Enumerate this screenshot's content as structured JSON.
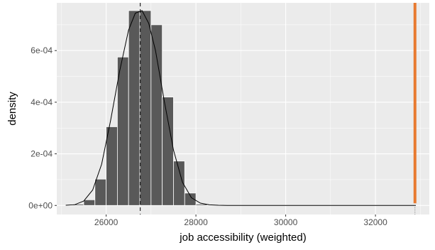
{
  "chart_data": {
    "type": "bar",
    "subtype": "histogram-with-density",
    "xlabel": "job accessibility (weighted)",
    "ylabel": "density",
    "xlim": [
      24900,
      33200
    ],
    "ylim": [
      -3.5e-05,
      0.000785
    ],
    "x_ticks": [
      26000,
      28000,
      30000,
      32000
    ],
    "x_tick_labels": [
      "26000",
      "28000",
      "30000",
      "32000"
    ],
    "y_ticks": [
      0,
      0.0002,
      0.0004,
      0.0006
    ],
    "y_tick_labels": [
      "0e+00",
      "2e-04",
      "4e-04",
      "6e-04"
    ],
    "grid": true,
    "bin_width": 250,
    "bins": [
      {
        "x0": 25250,
        "x1": 25500,
        "density": 5e-06
      },
      {
        "x0": 25500,
        "x1": 25750,
        "density": 2.2e-05
      },
      {
        "x0": 25750,
        "x1": 26000,
        "density": 0.000102
      },
      {
        "x0": 26000,
        "x1": 26250,
        "density": 0.000305
      },
      {
        "x0": 26250,
        "x1": 26500,
        "density": 0.000575
      },
      {
        "x0": 26500,
        "x1": 26750,
        "density": 0.000755
      },
      {
        "x0": 26750,
        "x1": 27000,
        "density": 0.000755
      },
      {
        "x0": 27000,
        "x1": 27250,
        "density": 0.0007
      },
      {
        "x0": 27250,
        "x1": 27500,
        "density": 0.00042
      },
      {
        "x0": 27500,
        "x1": 27750,
        "density": 0.000172
      },
      {
        "x0": 27750,
        "x1": 28000,
        "density": 4.8e-05
      },
      {
        "x0": 28000,
        "x1": 28250,
        "density": 5e-06
      }
    ],
    "density_curve": {
      "x": [
        25100,
        25300,
        25500,
        25700,
        25900,
        26100,
        26300,
        26500,
        26650,
        26800,
        26950,
        27100,
        27300,
        27500,
        27700,
        27900,
        28100,
        28300,
        28500,
        28700,
        29000,
        30000,
        31000,
        32000,
        32900
      ],
      "y": [
        8e-07,
        3e-06,
        1.7e-05,
        6e-05,
        0.00016,
        0.00033,
        0.00052,
        0.00068,
        0.000745,
        0.000755,
        0.000705,
        0.0006,
        0.0004,
        0.000215,
        9e-05,
        3e-05,
        9e-06,
        2.5e-06,
        6e-07,
        2e-07,
        0.0,
        0.0,
        0.0,
        0.0,
        0.0
      ]
    },
    "mean_line": {
      "x": 26760,
      "style": "dashed",
      "color": "#000000"
    },
    "observed_line": {
      "x": 32880,
      "color": "#E87A30"
    },
    "observed_line_baseline": {
      "x": 32880,
      "style": "dotted",
      "color": "#666666"
    },
    "colors": {
      "panel_background": "#EBEBEB",
      "grid_major": "#FFFFFF",
      "bar_fill": "#595959",
      "bar_outline": "#FFFFFF",
      "curve": "#000000",
      "axis_text": "#4D4D4D",
      "title_text": "#000000"
    }
  }
}
